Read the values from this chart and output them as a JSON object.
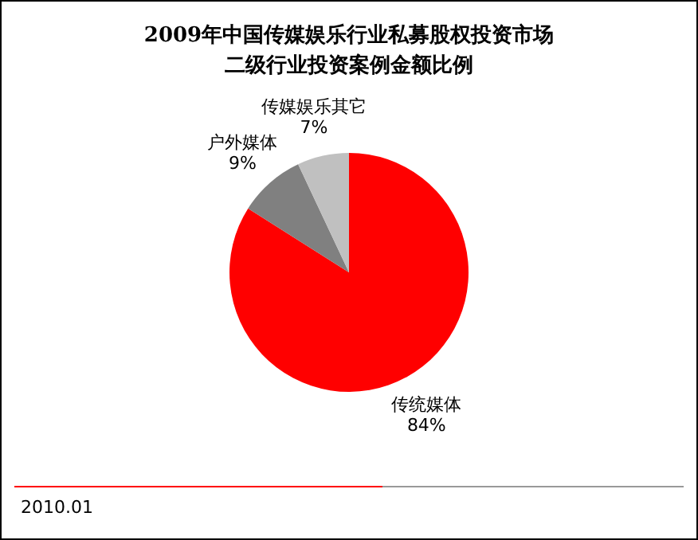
{
  "chart_data": {
    "type": "pie",
    "title": "2009年中国传媒娱乐行业私募股权投资市场",
    "subtitle": "二级行业投资案例金额比例",
    "categories": [
      "传统媒体",
      "户外媒体",
      "传媒娱乐其它"
    ],
    "values": [
      84,
      9,
      7
    ],
    "value_labels": [
      "84%",
      "9%",
      "7%"
    ],
    "colors": [
      "#ff0000",
      "#808080",
      "#c0c0c0"
    ],
    "legend": false,
    "annotations": [
      "2010.01"
    ]
  }
}
